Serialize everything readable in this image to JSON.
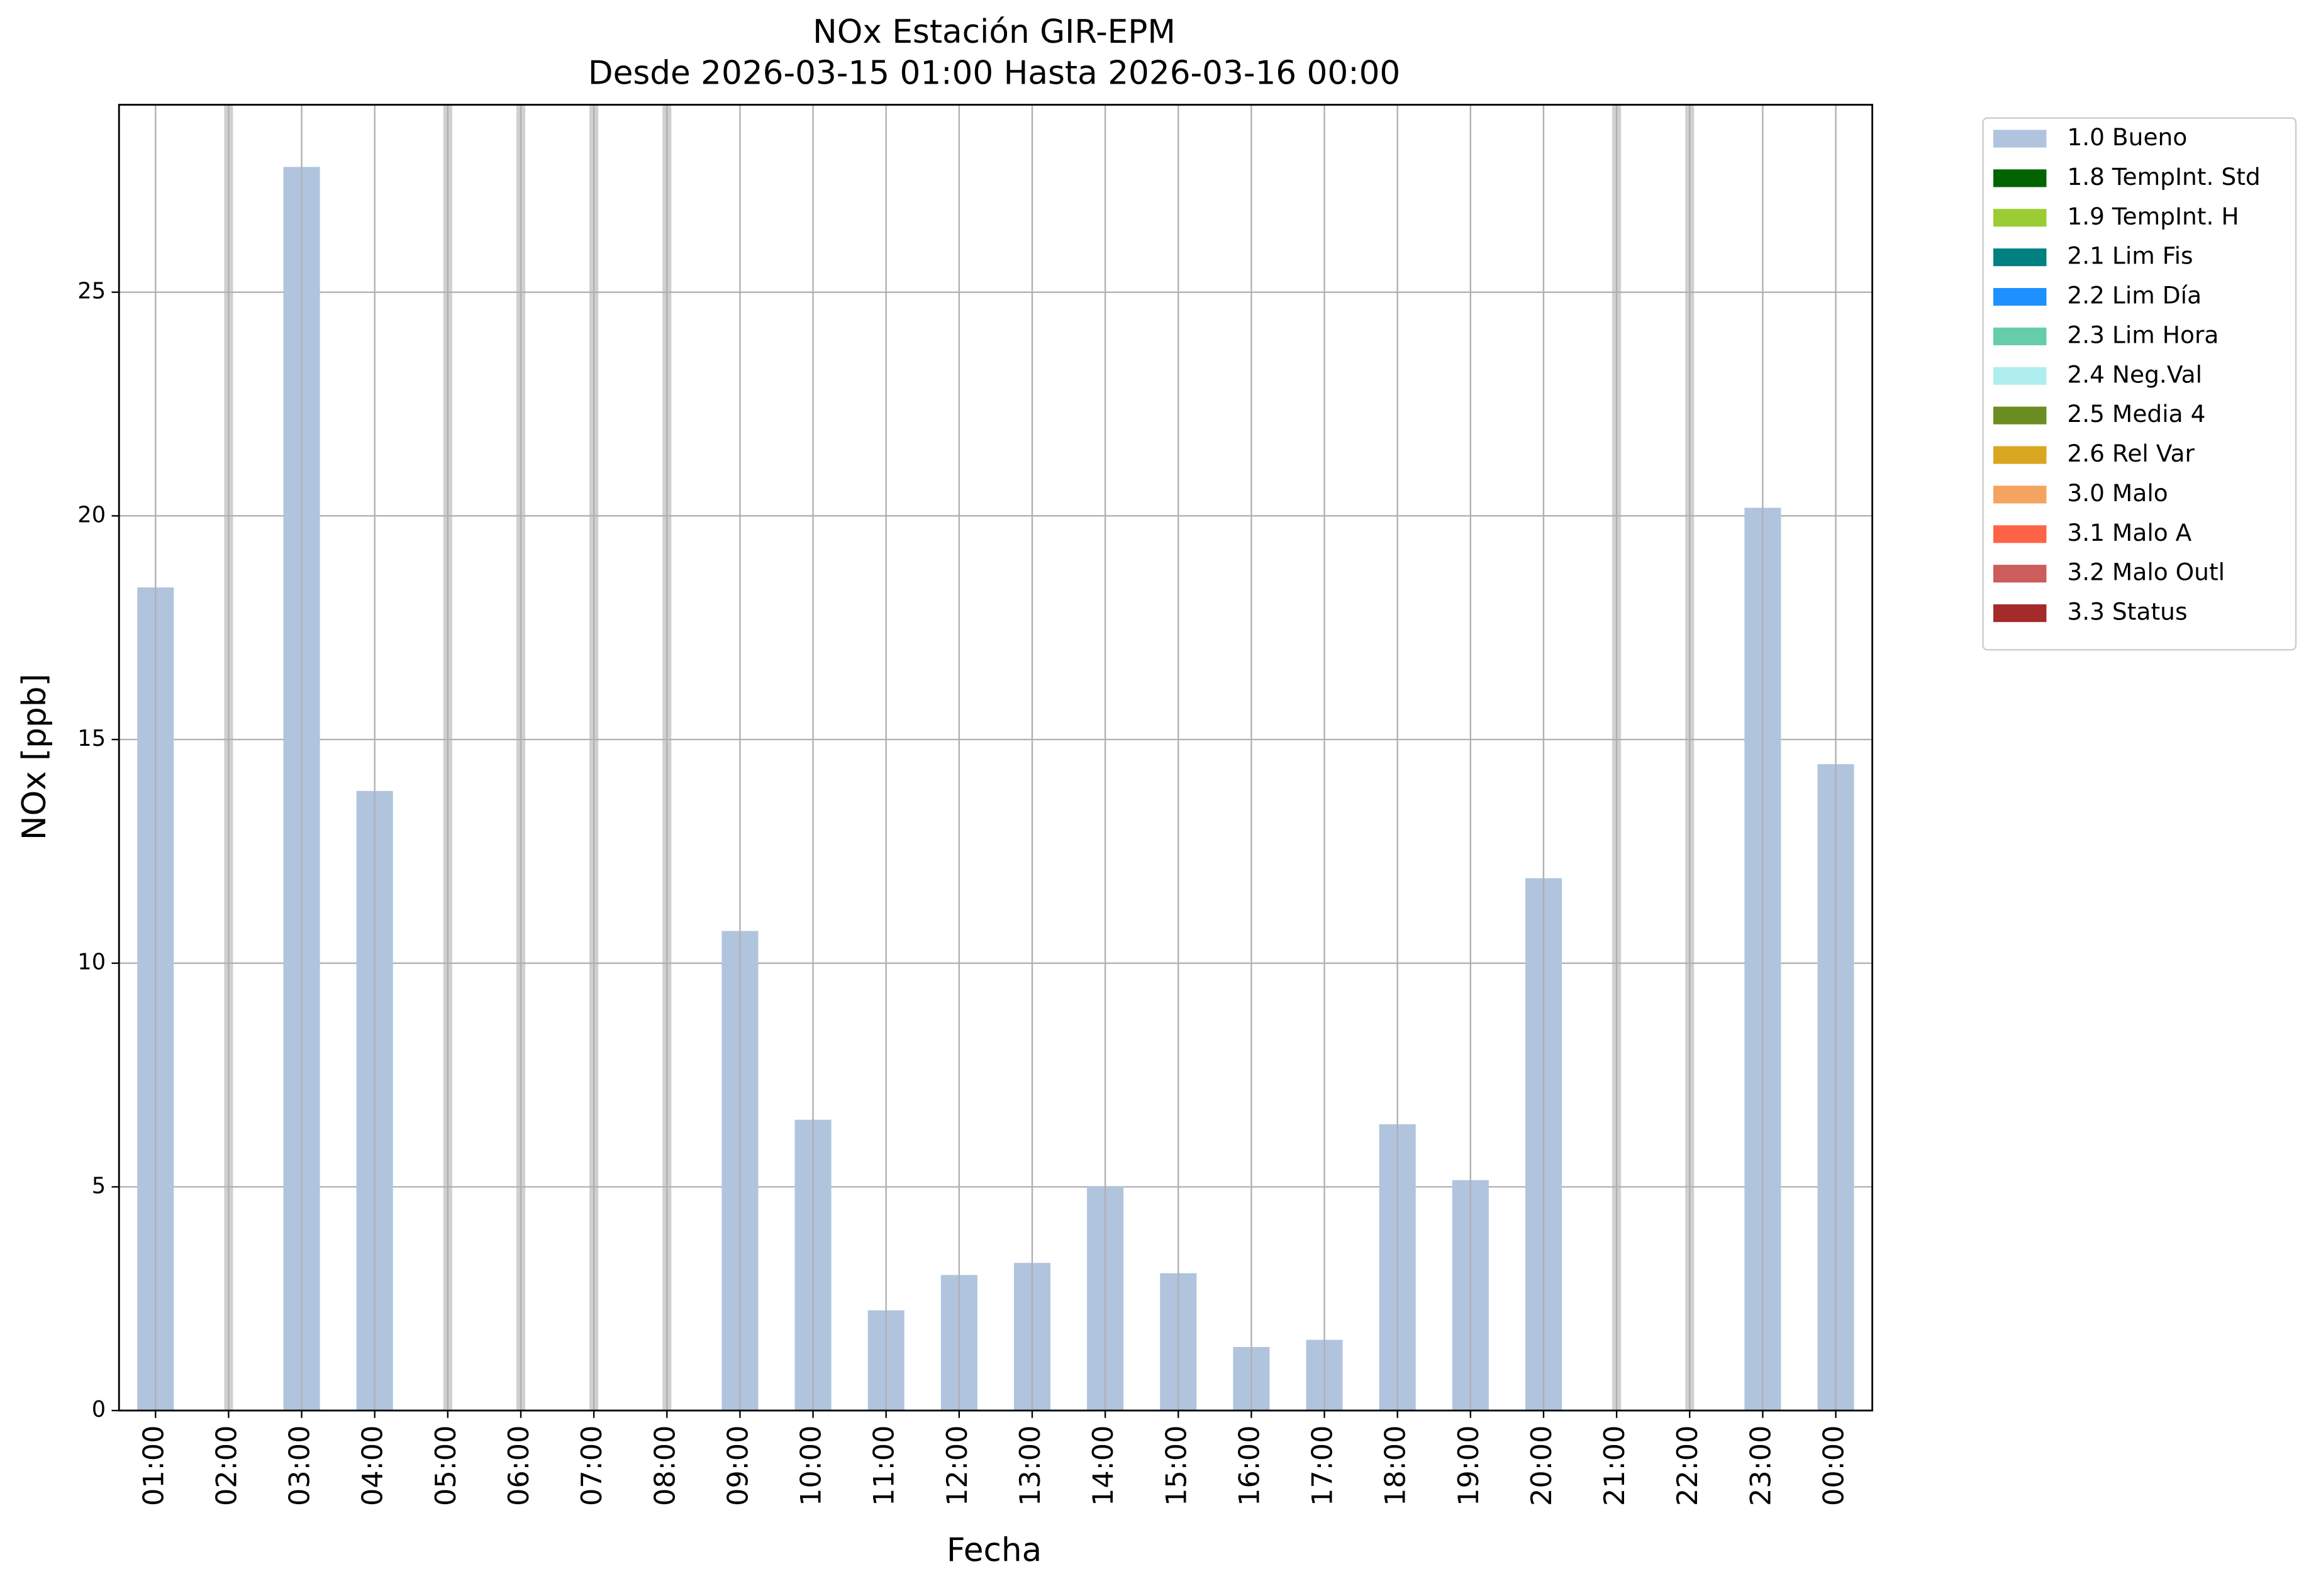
{
  "chart_data": {
    "type": "bar",
    "title": "NOx Estación GIR-EPM",
    "subtitle": "Desde 2026-03-15 01:00 Hasta 2026-03-16 00:00",
    "x_label": "Fecha",
    "y_label": "NOx [ppb]",
    "categories": [
      "01:00",
      "02:00",
      "03:00",
      "04:00",
      "05:00",
      "06:00",
      "07:00",
      "08:00",
      "09:00",
      "10:00",
      "11:00",
      "12:00",
      "13:00",
      "14:00",
      "15:00",
      "16:00",
      "17:00",
      "18:00",
      "19:00",
      "20:00",
      "21:00",
      "22:00",
      "23:00",
      "00:00"
    ],
    "series": [
      {
        "name": "1.0 Bueno",
        "color": "#b0c4de",
        "values": [
          18.4,
          null,
          27.8,
          13.85,
          null,
          null,
          null,
          null,
          10.72,
          6.5,
          2.24,
          3.03,
          3.3,
          5.01,
          3.07,
          1.42,
          1.58,
          6.4,
          5.15,
          11.9,
          null,
          null,
          20.18,
          14.45
        ]
      },
      {
        "name": "1.8 TempInt. Std",
        "color": "#006400",
        "values": [
          null,
          null,
          null,
          null,
          null,
          null,
          null,
          null,
          null,
          null,
          null,
          null,
          null,
          null,
          null,
          null,
          null,
          null,
          null,
          null,
          null,
          null,
          null,
          null
        ]
      },
      {
        "name": "1.9 TempInt. H",
        "color": "#9acd32",
        "values": [
          null,
          null,
          null,
          null,
          null,
          null,
          null,
          null,
          null,
          null,
          null,
          null,
          null,
          null,
          null,
          null,
          null,
          null,
          null,
          null,
          null,
          null,
          null,
          null
        ]
      },
      {
        "name": "2.1 Lim Fis",
        "color": "#008080",
        "values": [
          null,
          null,
          null,
          null,
          null,
          null,
          null,
          null,
          null,
          null,
          null,
          null,
          null,
          null,
          null,
          null,
          null,
          null,
          null,
          null,
          null,
          null,
          null,
          null
        ]
      },
      {
        "name": "2.2 Lim Día",
        "color": "#1e90ff",
        "values": [
          null,
          null,
          null,
          null,
          null,
          null,
          null,
          null,
          null,
          null,
          null,
          null,
          null,
          null,
          null,
          null,
          null,
          null,
          null,
          null,
          null,
          null,
          null,
          null
        ]
      },
      {
        "name": "2.3 Lim Hora",
        "color": "#66cdaa",
        "values": [
          null,
          null,
          null,
          null,
          null,
          null,
          null,
          null,
          null,
          null,
          null,
          null,
          null,
          null,
          null,
          null,
          null,
          null,
          null,
          null,
          null,
          null,
          null,
          null
        ]
      },
      {
        "name": "2.4 Neg.Val",
        "color": "#afeeee",
        "values": [
          null,
          null,
          null,
          null,
          null,
          null,
          null,
          null,
          null,
          null,
          null,
          null,
          null,
          null,
          null,
          null,
          null,
          null,
          null,
          null,
          null,
          null,
          null,
          null
        ]
      },
      {
        "name": "2.5 Media 4",
        "color": "#6b8e23",
        "values": [
          null,
          null,
          null,
          null,
          null,
          null,
          null,
          null,
          null,
          null,
          null,
          null,
          null,
          null,
          null,
          null,
          null,
          null,
          null,
          null,
          null,
          null,
          null,
          null
        ]
      },
      {
        "name": "2.6 Rel Var",
        "color": "#daa520",
        "values": [
          null,
          null,
          null,
          null,
          null,
          null,
          null,
          null,
          null,
          null,
          null,
          null,
          null,
          null,
          null,
          null,
          null,
          null,
          null,
          null,
          null,
          null,
          null,
          null
        ]
      },
      {
        "name": "3.0 Malo",
        "color": "#f4a460",
        "values": [
          null,
          null,
          null,
          null,
          null,
          null,
          null,
          null,
          null,
          null,
          null,
          null,
          null,
          null,
          null,
          null,
          null,
          null,
          null,
          null,
          null,
          null,
          null,
          null
        ]
      },
      {
        "name": "3.1 Malo A",
        "color": "#ff6347",
        "values": [
          null,
          null,
          null,
          null,
          null,
          null,
          null,
          null,
          null,
          null,
          null,
          null,
          null,
          null,
          null,
          null,
          null,
          null,
          null,
          null,
          null,
          null,
          null,
          null
        ]
      },
      {
        "name": "3.2 Malo Outl",
        "color": "#cd5c5c",
        "values": [
          null,
          null,
          null,
          null,
          null,
          null,
          null,
          null,
          null,
          null,
          null,
          null,
          null,
          null,
          null,
          null,
          null,
          null,
          null,
          null,
          null,
          null,
          null,
          null
        ]
      },
      {
        "name": "3.3 Status",
        "color": "#a52a2a",
        "values": [
          null,
          null,
          null,
          null,
          null,
          null,
          null,
          null,
          null,
          null,
          null,
          null,
          null,
          null,
          null,
          null,
          null,
          null,
          null,
          null,
          null,
          null,
          null,
          null
        ]
      }
    ],
    "ylim": [
      0,
      29.19
    ],
    "yticks": [
      0,
      5,
      10,
      15,
      20,
      25
    ],
    "grid": true,
    "legend": "outside-right"
  }
}
